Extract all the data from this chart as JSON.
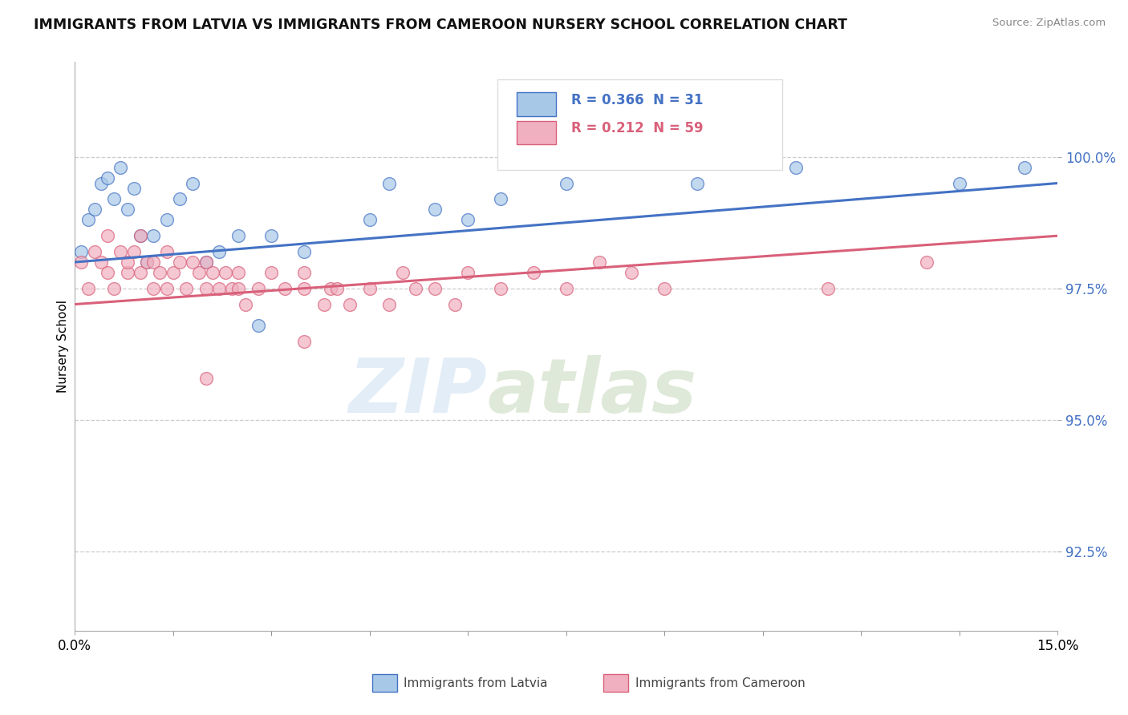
{
  "title": "IMMIGRANTS FROM LATVIA VS IMMIGRANTS FROM CAMEROON NURSERY SCHOOL CORRELATION CHART",
  "source": "Source: ZipAtlas.com",
  "ylabel": "Nursery School",
  "xlim": [
    0.0,
    15.0
  ],
  "ylim": [
    91.0,
    101.8
  ],
  "yticks": [
    92.5,
    95.0,
    97.5,
    100.0
  ],
  "ytick_labels": [
    "92.5%",
    "95.0%",
    "97.5%",
    "100.0%"
  ],
  "xticks": [
    0.0,
    15.0
  ],
  "xtick_labels": [
    "0.0%",
    "15.0%"
  ],
  "legend_r_latvia": "R = 0.366",
  "legend_n_latvia": "N = 31",
  "legend_r_cameroon": "R = 0.212",
  "legend_n_cameroon": "N = 59",
  "legend_label_latvia": "Immigrants from Latvia",
  "legend_label_cameroon": "Immigrants from Cameroon",
  "color_latvia": "#a8c8e8",
  "color_cameroon": "#f0b0c0",
  "color_line_latvia": "#4472c4",
  "color_line_cameroon": "#d9607a",
  "background_color": "#ffffff",
  "latvia_x": [
    0.1,
    0.2,
    0.3,
    0.4,
    0.5,
    0.6,
    0.7,
    0.8,
    0.9,
    1.0,
    1.1,
    1.2,
    1.4,
    1.6,
    1.8,
    2.0,
    2.2,
    2.5,
    2.8,
    3.0,
    3.5,
    4.5,
    4.8,
    5.5,
    6.0,
    6.5,
    7.5,
    9.5,
    11.0,
    13.5,
    14.5
  ],
  "latvia_y": [
    98.2,
    98.8,
    99.0,
    99.5,
    99.6,
    99.2,
    99.8,
    99.0,
    99.4,
    98.5,
    98.0,
    98.5,
    98.8,
    99.2,
    99.5,
    98.0,
    98.2,
    98.5,
    96.8,
    98.5,
    98.2,
    98.8,
    99.5,
    99.0,
    98.8,
    99.2,
    99.5,
    99.5,
    99.8,
    99.5,
    99.8
  ],
  "cameroon_x": [
    0.1,
    0.2,
    0.3,
    0.4,
    0.5,
    0.5,
    0.6,
    0.7,
    0.8,
    0.8,
    0.9,
    1.0,
    1.0,
    1.1,
    1.2,
    1.2,
    1.3,
    1.4,
    1.4,
    1.5,
    1.6,
    1.7,
    1.8,
    1.9,
    2.0,
    2.0,
    2.1,
    2.2,
    2.3,
    2.4,
    2.5,
    2.5,
    2.6,
    2.8,
    3.0,
    3.2,
    3.5,
    3.5,
    3.8,
    3.9,
    4.0,
    4.2,
    4.5,
    4.8,
    5.0,
    5.2,
    5.5,
    5.8,
    6.0,
    6.5,
    7.0,
    7.5,
    8.0,
    8.5,
    9.0,
    11.5,
    13.0,
    2.0,
    3.5
  ],
  "cameroon_y": [
    98.0,
    97.5,
    98.2,
    98.0,
    98.5,
    97.8,
    97.5,
    98.2,
    97.8,
    98.0,
    98.2,
    97.8,
    98.5,
    98.0,
    97.5,
    98.0,
    97.8,
    98.2,
    97.5,
    97.8,
    98.0,
    97.5,
    98.0,
    97.8,
    97.5,
    98.0,
    97.8,
    97.5,
    97.8,
    97.5,
    97.8,
    97.5,
    97.2,
    97.5,
    97.8,
    97.5,
    97.8,
    97.5,
    97.2,
    97.5,
    97.5,
    97.2,
    97.5,
    97.2,
    97.8,
    97.5,
    97.5,
    97.2,
    97.8,
    97.5,
    97.8,
    97.5,
    98.0,
    97.8,
    97.5,
    97.5,
    98.0,
    95.8,
    96.5
  ],
  "trendline_latvia_x0": 0.0,
  "trendline_latvia_y0": 98.0,
  "trendline_latvia_x1": 15.0,
  "trendline_latvia_y1": 99.5,
  "trendline_cameroon_x0": 0.0,
  "trendline_cameroon_y0": 97.2,
  "trendline_cameroon_x1": 15.0,
  "trendline_cameroon_y1": 98.5
}
